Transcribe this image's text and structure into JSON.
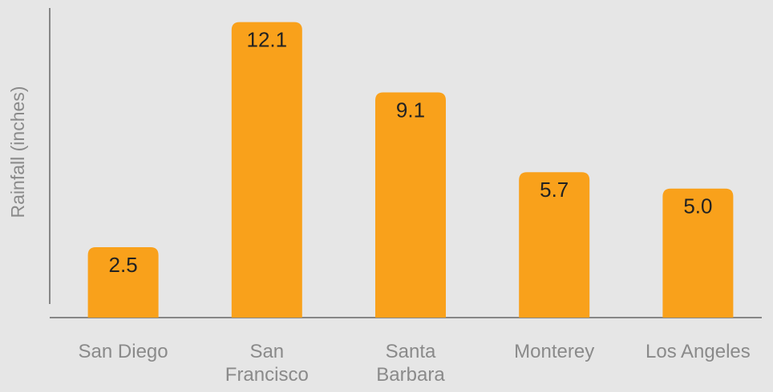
{
  "chart_data": {
    "type": "bar",
    "y_label": "Rainfall (inches)",
    "categories": [
      "San Diego",
      "San\nFrancisco",
      "Santa\nBarbara",
      "Monterey",
      "Los Angeles"
    ],
    "values": [
      2.5,
      12.1,
      9.1,
      5.7,
      5.0
    ],
    "value_labels": [
      "2.5",
      "12.1",
      "9.1",
      "5.7",
      "5.0"
    ],
    "color": "#f9a11b",
    "ylim": [
      -0.5,
      12.7
    ]
  }
}
